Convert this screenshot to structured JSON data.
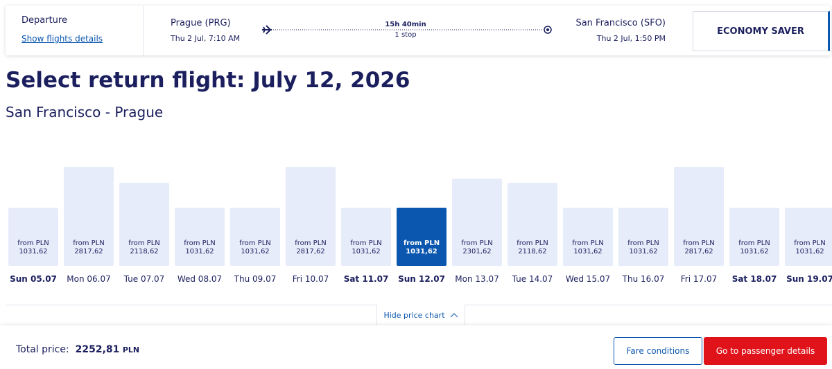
{
  "header": {
    "departure_label": "Departure",
    "details_link": "Show flights details",
    "origin": "Prague (PRG)",
    "origin_time": "Thu 2 Jul, 7:10 AM",
    "duration": "15h 40min",
    "stops": "1 stop",
    "destination": "San Francisco (SFO)",
    "destination_time": "Thu 2 Jul, 1:50 PM",
    "fare": "ECONOMY SAVER"
  },
  "title": "Select return flight: July 12, 2026",
  "route": "San Francisco - Prague",
  "days": [
    {
      "date": "Sun 05.07",
      "prefix": "from PLN",
      "price": "1031,62",
      "weekend": true
    },
    {
      "date": "Mon 06.07",
      "prefix": "from PLN",
      "price": "2817,62",
      "weekend": false
    },
    {
      "date": "Tue 07.07",
      "prefix": "from PLN",
      "price": "2118,62",
      "weekend": false
    },
    {
      "date": "Wed 08.07",
      "prefix": "from PLN",
      "price": "1031,62",
      "weekend": false
    },
    {
      "date": "Thu 09.07",
      "prefix": "from PLN",
      "price": "1031,62",
      "weekend": false
    },
    {
      "date": "Fri 10.07",
      "prefix": "from PLN",
      "price": "2817,62",
      "weekend": false
    },
    {
      "date": "Sat 11.07",
      "prefix": "from PLN",
      "price": "1031,62",
      "weekend": true
    },
    {
      "date": "Sun 12.07",
      "prefix": "from PLN",
      "price": "1031,62",
      "weekend": true
    },
    {
      "date": "Mon 13.07",
      "prefix": "from PLN",
      "price": "2301,62",
      "weekend": false
    },
    {
      "date": "Tue 14.07",
      "prefix": "from PLN",
      "price": "2118,62",
      "weekend": false
    },
    {
      "date": "Wed 15.07",
      "prefix": "from PLN",
      "price": "1031,62",
      "weekend": false
    },
    {
      "date": "Thu 16.07",
      "prefix": "from PLN",
      "price": "1031,62",
      "weekend": false
    },
    {
      "date": "Fri 17.07",
      "prefix": "from PLN",
      "price": "2817,62",
      "weekend": false
    },
    {
      "date": "Sat 18.07",
      "prefix": "from PLN",
      "price": "1031,62",
      "weekend": true
    },
    {
      "date": "Sun 19.07",
      "prefix": "from PLN",
      "price": "1031,62",
      "weekend": true
    }
  ],
  "selected": 7,
  "toggle": "Hide price chart",
  "footer": {
    "total_label": "Total price:",
    "total": "2252,81",
    "currency": "PLN",
    "fare_conditions": "Fare conditions",
    "continue": "Go to passenger details"
  }
}
